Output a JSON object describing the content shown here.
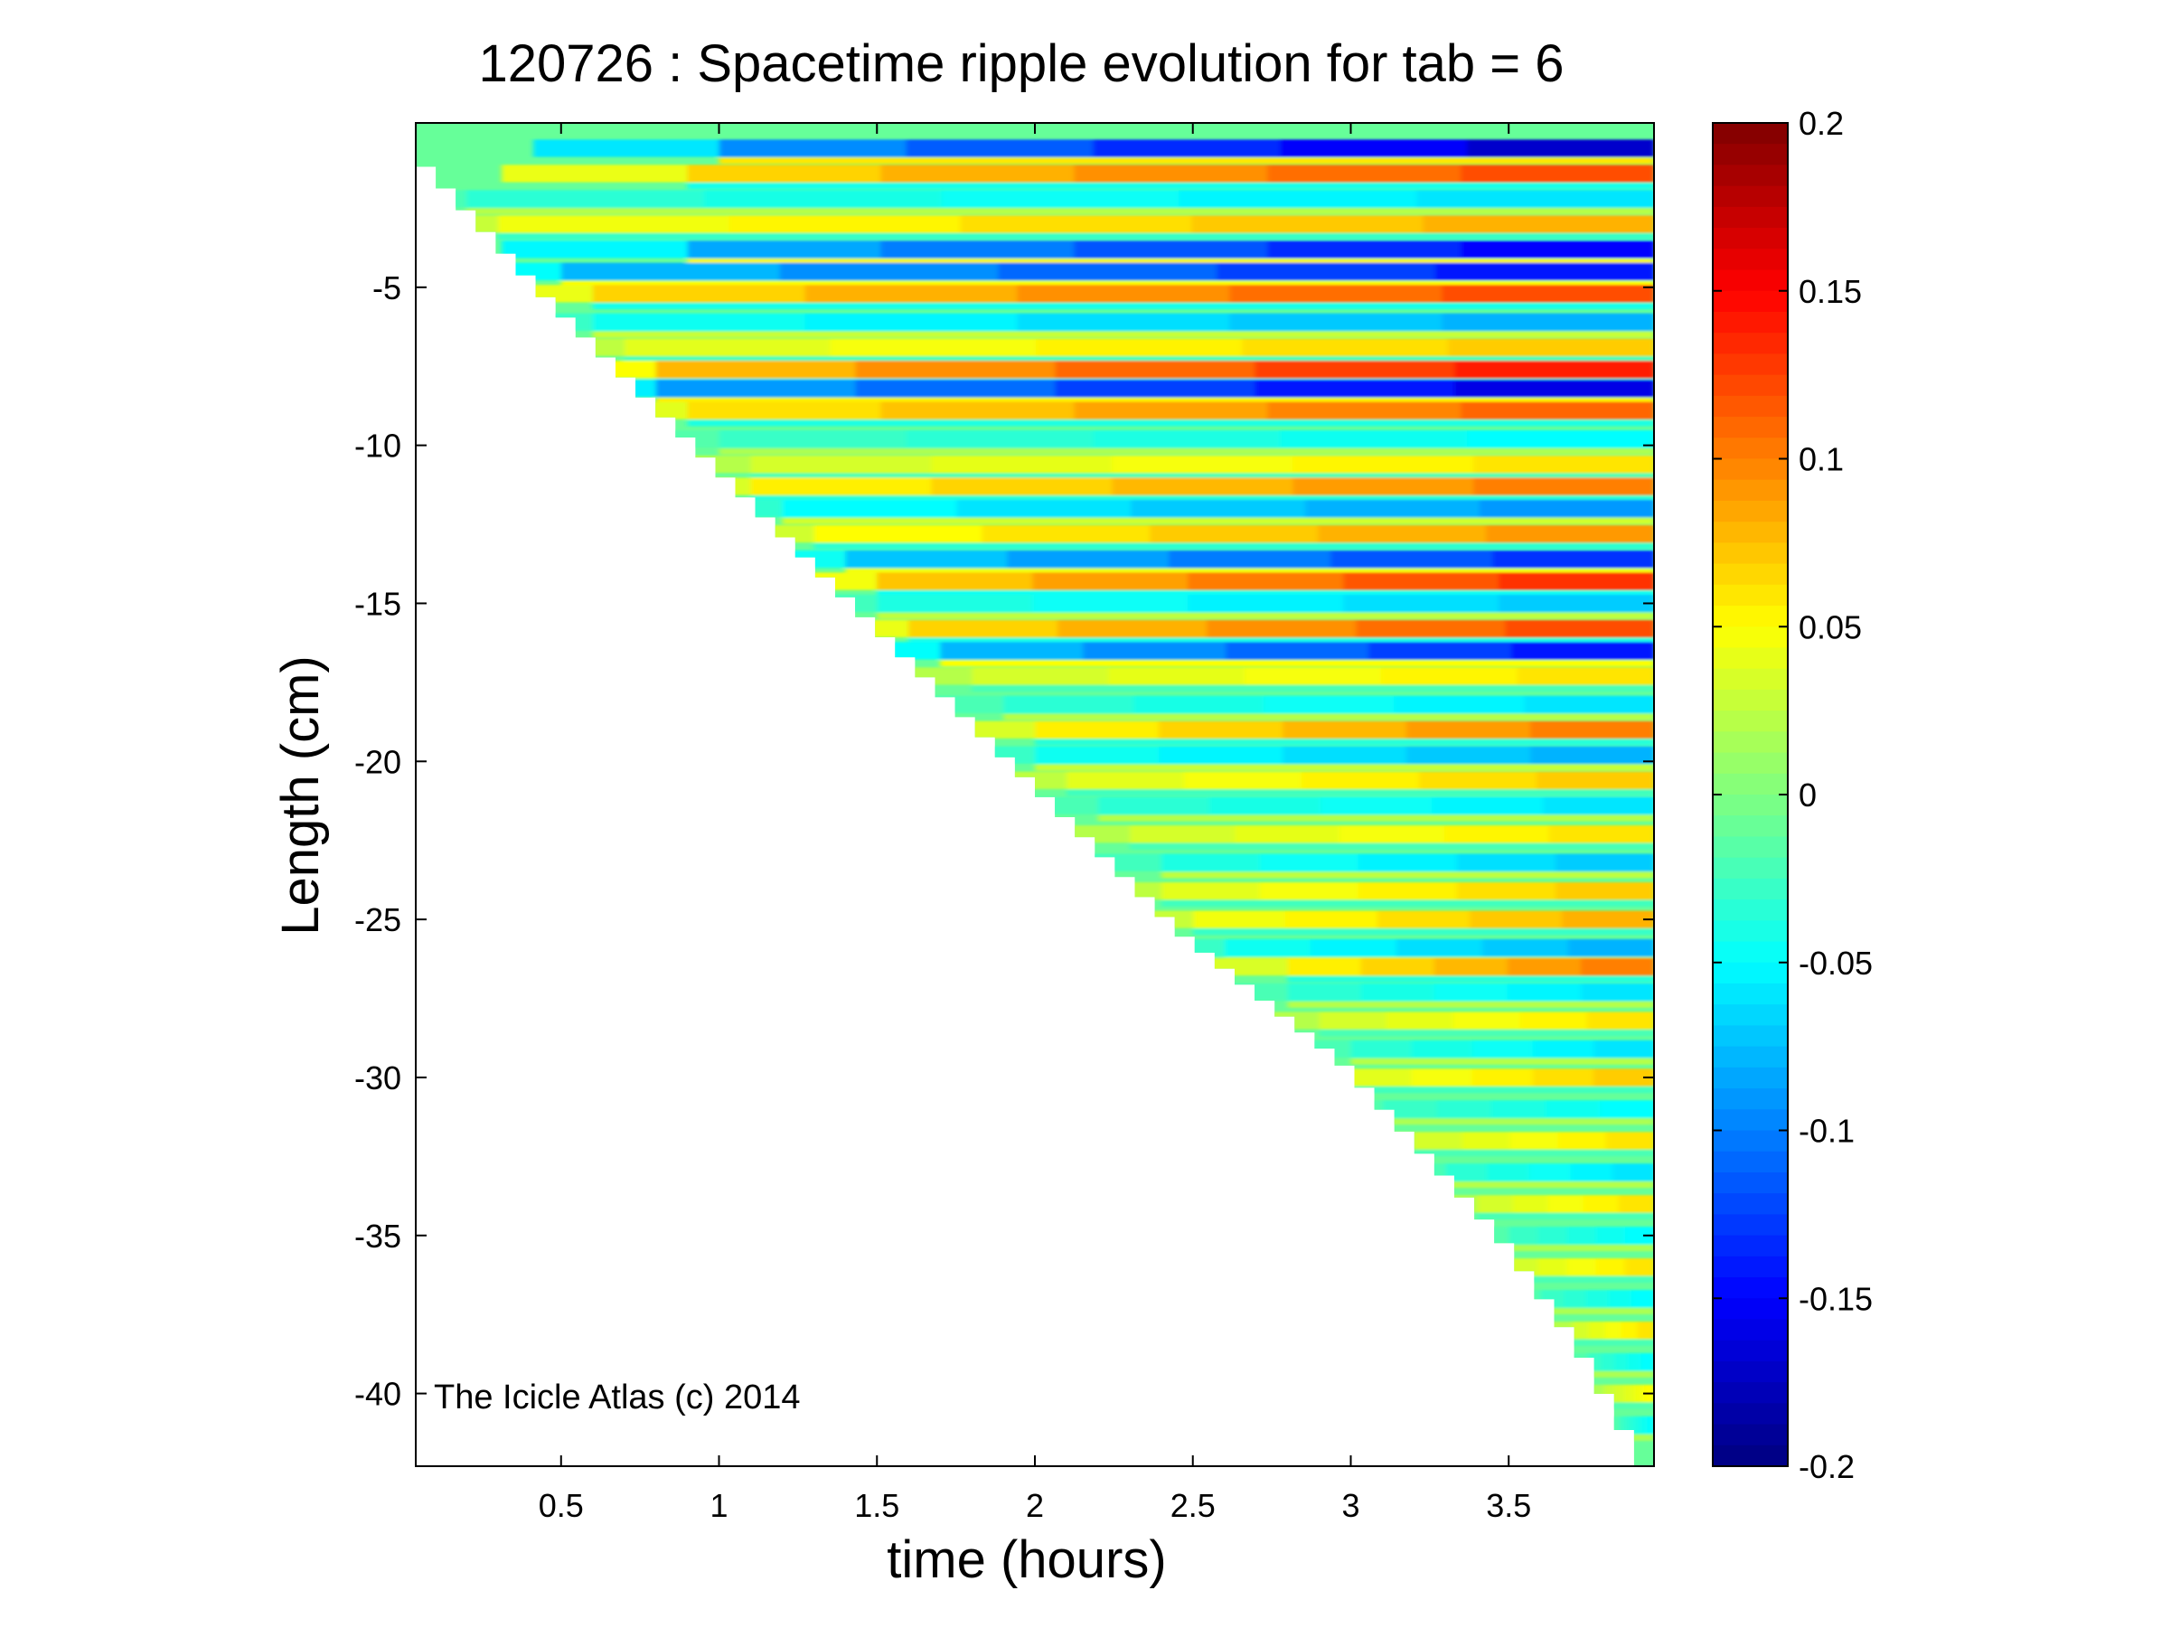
{
  "figure": {
    "title": "120726 : Spacetime ripple evolution for tab = 6",
    "watermark": "The Icicle Atlas (c) 2014"
  },
  "chart_data": {
    "type": "heatmap",
    "title": "120726 : Spacetime ripple evolution for tab = 6",
    "xlabel": "time (hours)",
    "ylabel": "Length (cm)",
    "xlim": [
      0.04,
      3.96
    ],
    "ylim": [
      -42.3,
      0.2
    ],
    "xticks": [
      0.5,
      1,
      1.5,
      2,
      2.5,
      3,
      3.5
    ],
    "xtick_labels": [
      "0.5",
      "1",
      "1.5",
      "2",
      "2.5",
      "3",
      "3.5"
    ],
    "yticks": [
      -5,
      -10,
      -15,
      -20,
      -25,
      -30,
      -35,
      -40
    ],
    "ytick_labels": [
      "-5",
      "-10",
      "-15",
      "-20",
      "-25",
      "-30",
      "-35",
      "-40"
    ],
    "colormap": "jet",
    "clim": [
      -0.2,
      0.2
    ],
    "colorbar_ticks": [
      0.2,
      0.15,
      0.1,
      0.05,
      0,
      -0.05,
      -0.1,
      -0.15,
      -0.2
    ],
    "colorbar_tick_labels": [
      "0.2",
      "0.15",
      "0.1",
      "0.05",
      "0",
      "-0.05",
      "-0.1",
      "-0.15",
      "-0.2"
    ],
    "grid": false,
    "colorbar_position": "right",
    "data_edge": {
      "description": "growth front: icicle tip length vs time",
      "time_hours": [
        0.04,
        0.5,
        1.0,
        1.5,
        2.0,
        2.5,
        3.0,
        3.5,
        3.75,
        3.96
      ],
      "length_cm": [
        -0.5,
        -5.5,
        -10.5,
        -15.5,
        -20.5,
        -25.5,
        -29.5,
        -35.0,
        -38.5,
        -42.3
      ]
    },
    "bands": [
      {
        "length_cm": -0.6,
        "start_hours": 1.0,
        "amplitude": -0.17
      },
      {
        "length_cm": -1.4,
        "start_hours": 0.9,
        "amplitude": 0.12
      },
      {
        "length_cm": -2.2,
        "start_hours": 0.2,
        "amplitude": -0.06
      },
      {
        "length_cm": -3.0,
        "start_hours": 0.3,
        "amplitude": 0.08
      },
      {
        "length_cm": -3.8,
        "start_hours": 0.9,
        "amplitude": -0.15
      },
      {
        "length_cm": -4.5,
        "start_hours": 0.5,
        "amplitude": -0.14
      },
      {
        "length_cm": -5.2,
        "start_hours": 0.6,
        "amplitude": 0.12
      },
      {
        "length_cm": -6.1,
        "start_hours": 0.6,
        "amplitude": -0.08
      },
      {
        "length_cm": -6.9,
        "start_hours": 0.7,
        "amplitude": 0.07
      },
      {
        "length_cm": -7.6,
        "start_hours": 0.8,
        "amplitude": 0.14
      },
      {
        "length_cm": -8.2,
        "start_hours": 0.8,
        "amplitude": -0.16
      },
      {
        "length_cm": -8.9,
        "start_hours": 0.9,
        "amplitude": 0.11
      },
      {
        "length_cm": -9.8,
        "start_hours": 1.0,
        "amplitude": -0.05
      },
      {
        "length_cm": -10.6,
        "start_hours": 1.1,
        "amplitude": 0.06
      },
      {
        "length_cm": -11.3,
        "start_hours": 1.1,
        "amplitude": 0.1
      },
      {
        "length_cm": -12.0,
        "start_hours": 1.2,
        "amplitude": -0.09
      },
      {
        "length_cm": -12.8,
        "start_hours": 1.3,
        "amplitude": 0.09
      },
      {
        "length_cm": -13.6,
        "start_hours": 1.4,
        "amplitude": -0.13
      },
      {
        "length_cm": -14.3,
        "start_hours": 1.5,
        "amplitude": 0.13
      },
      {
        "length_cm": -15.0,
        "start_hours": 1.5,
        "amplitude": -0.07
      },
      {
        "length_cm": -15.8,
        "start_hours": 1.6,
        "amplitude": 0.12
      },
      {
        "length_cm": -16.5,
        "start_hours": 1.7,
        "amplitude": -0.14
      },
      {
        "length_cm": -17.3,
        "start_hours": 1.8,
        "amplitude": 0.06
      },
      {
        "length_cm": -18.2,
        "start_hours": 1.9,
        "amplitude": -0.06
      },
      {
        "length_cm": -19.0,
        "start_hours": 2.0,
        "amplitude": 0.1
      },
      {
        "length_cm": -19.8,
        "start_hours": 2.0,
        "amplitude": -0.08
      },
      {
        "length_cm": -20.6,
        "start_hours": 2.1,
        "amplitude": 0.07
      },
      {
        "length_cm": -21.4,
        "start_hours": 2.2,
        "amplitude": -0.06
      },
      {
        "length_cm": -22.3,
        "start_hours": 2.3,
        "amplitude": 0.06
      },
      {
        "length_cm": -23.2,
        "start_hours": 2.4,
        "amplitude": -0.07
      },
      {
        "length_cm": -24.1,
        "start_hours": 2.4,
        "amplitude": 0.07
      },
      {
        "length_cm": -25.0,
        "start_hours": 2.5,
        "amplitude": 0.08
      },
      {
        "length_cm": -25.9,
        "start_hours": 2.6,
        "amplitude": -0.08
      },
      {
        "length_cm": -26.5,
        "start_hours": 2.8,
        "amplitude": 0.1
      },
      {
        "length_cm": -27.3,
        "start_hours": 2.8,
        "amplitude": -0.06
      },
      {
        "length_cm": -28.2,
        "start_hours": 2.9,
        "amplitude": 0.06
      },
      {
        "length_cm": -29.1,
        "start_hours": 3.0,
        "amplitude": -0.06
      },
      {
        "length_cm": -30.0,
        "start_hours": 3.0,
        "amplitude": 0.07
      },
      {
        "length_cm": -31.0,
        "start_hours": 3.1,
        "amplitude": -0.05
      },
      {
        "length_cm": -32.0,
        "start_hours": 3.2,
        "amplitude": 0.06
      },
      {
        "length_cm": -33.0,
        "start_hours": 3.3,
        "amplitude": -0.06
      },
      {
        "length_cm": -34.0,
        "start_hours": 3.4,
        "amplitude": 0.06
      },
      {
        "length_cm": -35.0,
        "start_hours": 3.5,
        "amplitude": -0.05
      },
      {
        "length_cm": -36.0,
        "start_hours": 3.5,
        "amplitude": 0.06
      },
      {
        "length_cm": -37.0,
        "start_hours": 3.6,
        "amplitude": -0.05
      },
      {
        "length_cm": -38.0,
        "start_hours": 3.7,
        "amplitude": 0.06
      },
      {
        "length_cm": -39.0,
        "start_hours": 3.75,
        "amplitude": -0.05
      },
      {
        "length_cm": -40.0,
        "start_hours": 3.8,
        "amplitude": 0.05
      },
      {
        "length_cm": -41.0,
        "start_hours": 3.85,
        "amplitude": -0.05
      }
    ]
  }
}
